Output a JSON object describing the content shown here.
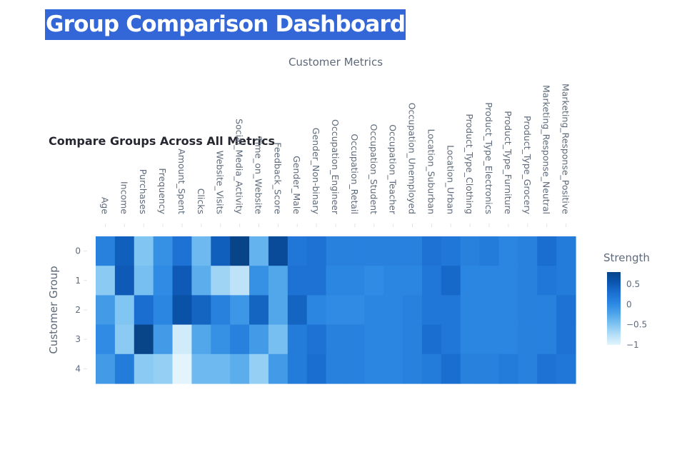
{
  "page": {
    "title": "Group Comparison Dashboard"
  },
  "chart_data": {
    "type": "heatmap",
    "title": "Compare Groups Across All Metrics",
    "xlabel": "Customer Metrics",
    "ylabel": "Customer Group",
    "x": [
      "Age",
      "Income",
      "Purchases",
      "Frequency",
      "Amount_Spent",
      "Clicks",
      "Website_Visits",
      "Social_Media_Activity",
      "Time_on_Website",
      "Feedback_Score",
      "Gender_Male",
      "Gender_Non-binary",
      "Occupation_Engineer",
      "Occupation_Retail",
      "Occupation_Student",
      "Occupation_Teacher",
      "Occupation_Unemployed",
      "Location_Suburban",
      "Location_Urban",
      "Product_Type_Clothing",
      "Product_Type_Electronics",
      "Product_Type_Furniture",
      "Product_Type_Grocery",
      "Marketing_Response_Neutral",
      "Marketing_Response_Positive"
    ],
    "y": [
      "0",
      "1",
      "2",
      "3",
      "4"
    ],
    "z": [
      [
        0.1,
        0.45,
        -0.5,
        -0.05,
        0.25,
        -0.4,
        0.45,
        0.8,
        -0.35,
        0.7,
        0.2,
        0.25,
        0.1,
        0.1,
        0.1,
        0.1,
        0.1,
        0.25,
        0.2,
        0.1,
        0.15,
        0.05,
        0.1,
        0.3,
        0.15
      ],
      [
        -0.55,
        0.5,
        -0.45,
        0.0,
        0.5,
        -0.3,
        -0.65,
        -0.8,
        -0.05,
        -0.25,
        0.25,
        0.25,
        0.05,
        0.05,
        0.0,
        0.05,
        0.05,
        0.2,
        0.35,
        0.05,
        0.05,
        0.05,
        0.1,
        0.2,
        0.15
      ],
      [
        -0.15,
        -0.5,
        0.3,
        0.05,
        0.6,
        0.4,
        0.1,
        -0.1,
        0.4,
        -0.25,
        0.4,
        0.05,
        0.0,
        0.0,
        0.05,
        0.05,
        0.1,
        0.2,
        0.2,
        0.05,
        0.05,
        0.05,
        0.1,
        0.1,
        0.25
      ],
      [
        0.0,
        -0.55,
        0.8,
        -0.15,
        -0.9,
        -0.25,
        -0.05,
        0.1,
        -0.15,
        -0.45,
        0.15,
        0.25,
        0.1,
        0.1,
        0.05,
        0.05,
        0.1,
        0.3,
        0.2,
        0.05,
        0.05,
        0.05,
        0.1,
        0.1,
        0.25
      ],
      [
        -0.15,
        0.15,
        -0.55,
        -0.6,
        -1.0,
        -0.4,
        -0.4,
        -0.3,
        -0.6,
        -0.15,
        0.15,
        0.3,
        0.1,
        0.1,
        0.05,
        0.05,
        0.1,
        0.15,
        0.3,
        0.1,
        0.1,
        0.15,
        0.1,
        0.25,
        0.2
      ]
    ],
    "zlim": [
      -1,
      0.8
    ],
    "colorscale": [
      "#e3f4fc",
      "#b3def7",
      "#7ec3f2",
      "#4ea4ea",
      "#2b88e2",
      "#1b6fd1",
      "#0b56b0",
      "#084488"
    ],
    "colorbar": {
      "title": "Strength",
      "ticks": [
        0.5,
        0,
        -0.5,
        -1
      ],
      "tick_labels": [
        "0.5",
        "0",
        "−0.5",
        "−1"
      ]
    }
  }
}
